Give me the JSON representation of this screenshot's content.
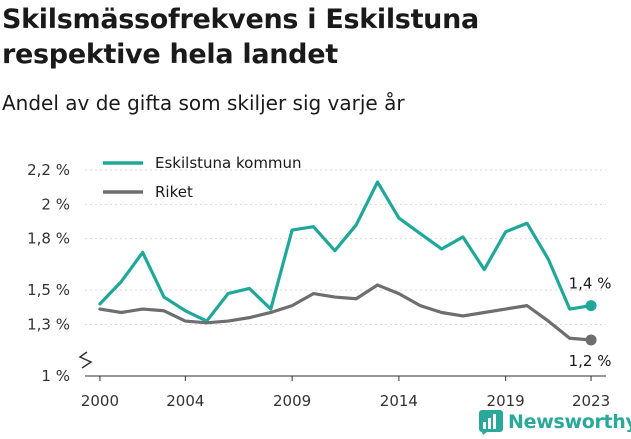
{
  "header": {
    "title": "Skilsmässofrekvens i Eskilstuna respektive hela landet",
    "subtitle": "Andel av de gifta som skiljer sig varje år"
  },
  "brand": {
    "name": "Newsworthy"
  },
  "colors": {
    "eskilstuna": "#1fa89a",
    "riket": "#6e6e72",
    "grid": "#d9d9d9",
    "axis": "#333333"
  },
  "chart_data": {
    "type": "line",
    "x": [
      2000,
      2001,
      2002,
      2003,
      2004,
      2005,
      2006,
      2007,
      2008,
      2009,
      2010,
      2011,
      2012,
      2013,
      2014,
      2015,
      2016,
      2017,
      2018,
      2019,
      2020,
      2021,
      2022,
      2023
    ],
    "x_ticks": [
      2000,
      2004,
      2009,
      2014,
      2019,
      2023
    ],
    "x_tick_labels": [
      "2000",
      "2004",
      "2009",
      "2014",
      "2019",
      "2023"
    ],
    "series": [
      {
        "name": "Eskilstuna kommun",
        "values": [
          1.42,
          1.55,
          1.72,
          1.46,
          1.38,
          1.32,
          1.48,
          1.51,
          1.39,
          1.85,
          1.87,
          1.73,
          1.88,
          2.13,
          1.92,
          1.83,
          1.74,
          1.81,
          1.62,
          1.84,
          1.89,
          1.68,
          1.39,
          1.41
        ],
        "end_label": "1,4 %"
      },
      {
        "name": "Riket",
        "values": [
          1.39,
          1.37,
          1.39,
          1.38,
          1.32,
          1.31,
          1.32,
          1.34,
          1.37,
          1.41,
          1.48,
          1.46,
          1.45,
          1.53,
          1.48,
          1.41,
          1.37,
          1.35,
          1.37,
          1.39,
          1.41,
          1.32,
          1.22,
          1.21
        ],
        "end_label": "1,2 %"
      }
    ],
    "y_ticks": [
      1.0,
      1.3,
      1.5,
      1.8,
      2.0,
      2.2
    ],
    "y_tick_labels": [
      "1 %",
      "1,3 %",
      "1,5 %",
      "1,8 %",
      "2 %",
      "2,2 %"
    ],
    "ylim": [
      1.0,
      2.2
    ],
    "xlim": [
      1999.3,
      2023.7
    ],
    "grid": true,
    "legend_position": "top-left"
  }
}
